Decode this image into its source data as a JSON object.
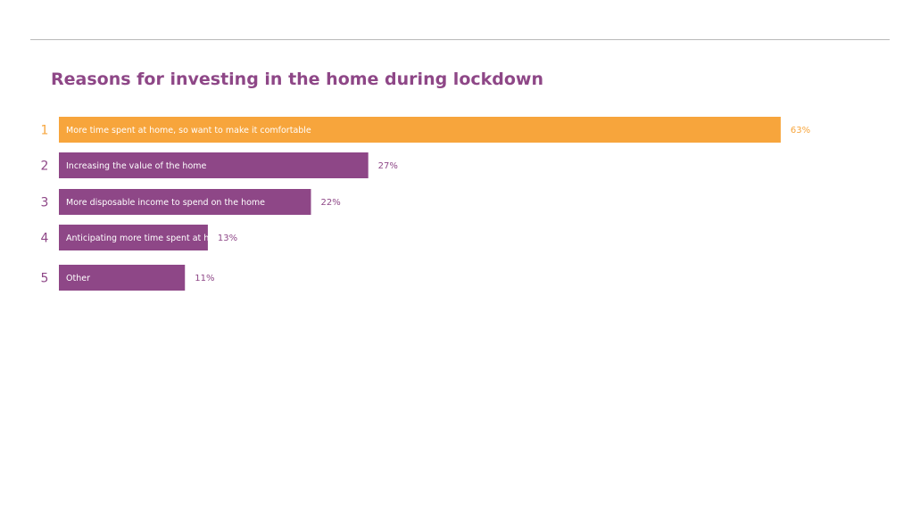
{
  "chart_data": {
    "type": "bar",
    "orientation": "horizontal",
    "title": "Reasons for investing in the home during lockdown",
    "categories": [
      "More time spent at home, so want to make it comfortable",
      "Increasing the value of the home",
      "More disposable income to spend on the home",
      "Anticipating more time spent at home, due to potential of an extended lockdown",
      "Other"
    ],
    "ranks": [
      "1",
      "2",
      "3",
      "4",
      "5"
    ],
    "values": [
      63,
      27,
      22,
      13,
      11
    ],
    "value_labels": [
      "63%",
      "27%",
      "22%",
      "13%",
      "11%"
    ],
    "unit": "%",
    "highlight_index": 0,
    "colors": {
      "highlight": "#f7a53c",
      "bar": "#8e4787",
      "title": "#8e4787",
      "bar_text": "#ffffff",
      "rule": "#b8b8b8"
    },
    "grid": false,
    "legend": "none",
    "axes_visible": false
  }
}
